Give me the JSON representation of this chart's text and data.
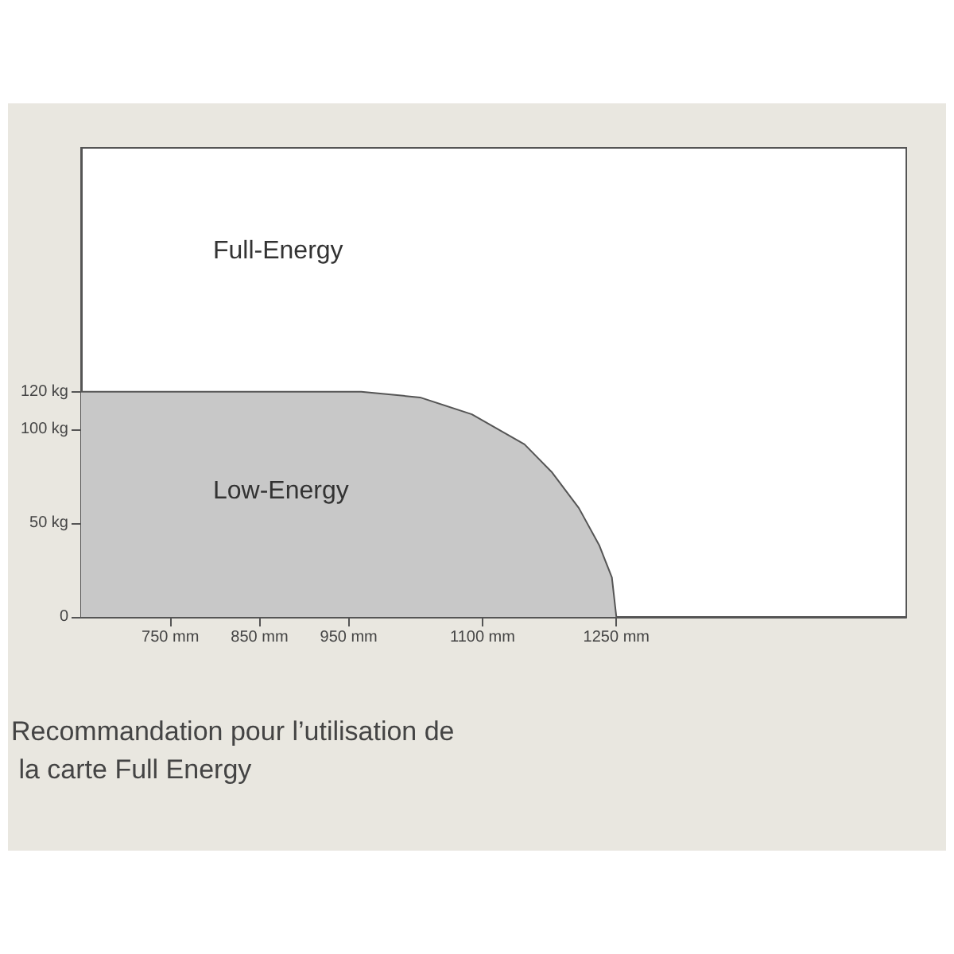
{
  "chart_data": {
    "type": "area",
    "x": [
      650,
      964,
      1030,
      1088,
      1147,
      1178,
      1208,
      1231,
      1245,
      1250
    ],
    "values": [
      120,
      120,
      117,
      108,
      92,
      77,
      58,
      38,
      21,
      0
    ],
    "color": "#c8c8c8",
    "xlim": [
      650,
      1575
    ],
    "ylim": [
      0,
      250
    ],
    "xticks": [
      {
        "value": 750,
        "label": "750 mm"
      },
      {
        "value": 850,
        "label": "850 mm"
      },
      {
        "value": 950,
        "label": "950 mm"
      },
      {
        "value": 1100,
        "label": "1100 mm"
      },
      {
        "value": 1250,
        "label": "1250 mm"
      }
    ],
    "yticks": [
      0,
      {
        "value": 50,
        "label": "50 kg"
      },
      {
        "value": 100,
        "label": "100 kg"
      },
      {
        "value": 120,
        "label": "120 kg"
      }
    ],
    "annotations": [
      "Full-Energy",
      "Low-Energy",
      "Recommandation pour l’utilisation de la carte Full Energy"
    ]
  }
}
